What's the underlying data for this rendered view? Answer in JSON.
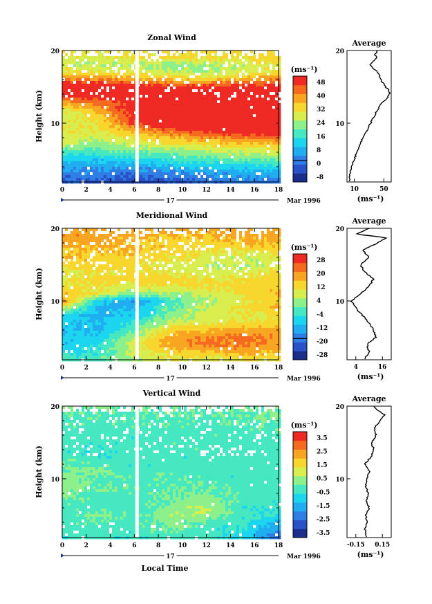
{
  "colors": {
    "wind_scale": [
      "#1a2f8c",
      "#2a52c8",
      "#2f7ee6",
      "#21aef0",
      "#1cd6ef",
      "#45e8c0",
      "#8df08a",
      "#d7ee4e",
      "#f7d72e",
      "#f8a621",
      "#f56a1e",
      "#ef2a24"
    ]
  },
  "chart_data": [
    {
      "type": "heatmap",
      "title": "Zonal Wind",
      "ylabel": "Height (km)",
      "y_ticks": [
        "20",
        "10"
      ],
      "x_ticks": [
        "0",
        "2",
        "4",
        "6",
        "8",
        "10",
        "12",
        "14",
        "16",
        "18"
      ],
      "xlim": [
        0,
        18
      ],
      "ylim": [
        2,
        20
      ],
      "date_row": {
        "day": "17",
        "month": "Mar 1996"
      },
      "gap_hour": 6.2,
      "colorbar": {
        "unit": "(ms⁻¹)",
        "labels": [
          "48",
          "40",
          "32",
          "24",
          "16",
          "8",
          "0",
          "-8"
        ],
        "zero_line": true
      },
      "average": {
        "title": "Average",
        "x_ticks": [
          "10",
          "50"
        ],
        "xlim": [
          0,
          60
        ],
        "unit": "(ms⁻¹)",
        "y_ticks": [
          "20",
          "10"
        ],
        "profile": [
          [
            2,
            3
          ],
          [
            3,
            4
          ],
          [
            4,
            6
          ],
          [
            5,
            10
          ],
          [
            6,
            13
          ],
          [
            7,
            17
          ],
          [
            8,
            22
          ],
          [
            9,
            27
          ],
          [
            10,
            32
          ],
          [
            11,
            37
          ],
          [
            12,
            42
          ],
          [
            12.8,
            48
          ],
          [
            13.5,
            55
          ],
          [
            14,
            58
          ],
          [
            14.5,
            57
          ],
          [
            15,
            52
          ],
          [
            16,
            46
          ],
          [
            17,
            42
          ],
          [
            17.5,
            36
          ],
          [
            18,
            31
          ],
          [
            18.5,
            35
          ],
          [
            19,
            40
          ],
          [
            19.5,
            38
          ],
          [
            20,
            42
          ]
        ]
      },
      "field": {
        "levels": [
          -8,
          0,
          8,
          16,
          24,
          32,
          40,
          48
        ],
        "times": [
          0,
          3,
          6,
          9,
          12,
          15,
          18
        ],
        "rows": [
          {
            "h": 2,
            "v": [
              0,
              0,
              -2,
              0,
              2,
              4,
              4
            ]
          },
          {
            "h": 3,
            "v": [
              4,
              4,
              2,
              4,
              6,
              8,
              8
            ]
          },
          {
            "h": 4,
            "v": [
              8,
              8,
              8,
              10,
              12,
              12,
              14
            ]
          },
          {
            "h": 5,
            "v": [
              12,
              12,
              14,
              16,
              18,
              20,
              20
            ]
          },
          {
            "h": 6,
            "v": [
              18,
              18,
              20,
              22,
              24,
              26,
              26
            ]
          },
          {
            "h": 7,
            "v": [
              24,
              22,
              26,
              28,
              30,
              32,
              32
            ]
          },
          {
            "h": 8,
            "v": [
              28,
              26,
              30,
              34,
              38,
              40,
              42
            ]
          },
          {
            "h": 9,
            "v": [
              30,
              28,
              36,
              42,
              46,
              48,
              50
            ]
          },
          {
            "h": 10,
            "v": [
              28,
              30,
              44,
              50,
              50,
              52,
              54
            ]
          },
          {
            "h": 11,
            "v": [
              26,
              32,
              46,
              52,
              54,
              54,
              54
            ]
          },
          {
            "h": 12,
            "v": [
              28,
              36,
              48,
              50,
              50,
              52,
              52
            ]
          },
          {
            "h": 13,
            "v": [
              38,
              42,
              46,
              48,
              50,
              50,
              50
            ]
          },
          {
            "h": 14,
            "v": [
              48,
              50,
              50,
              50,
              50,
              52,
              52
            ]
          },
          {
            "h": 15,
            "v": [
              50,
              50,
              48,
              46,
              46,
              46,
              48
            ]
          },
          {
            "h": 16,
            "v": [
              40,
              40,
              36,
              34,
              32,
              36,
              40
            ]
          },
          {
            "h": 17,
            "v": [
              30,
              30,
              28,
              26,
              24,
              28,
              30
            ]
          },
          {
            "h": 18,
            "v": [
              26,
              24,
              24,
              22,
              24,
              26,
              28
            ]
          },
          {
            "h": 19,
            "v": [
              28,
              28,
              30,
              32,
              30,
              30,
              32
            ]
          },
          {
            "h": 20,
            "v": [
              30,
              30,
              30,
              30,
              30,
              30,
              30
            ]
          }
        ]
      }
    },
    {
      "type": "heatmap",
      "title": "Meridional Wind",
      "ylabel": "Height (km)",
      "y_ticks": [
        "20",
        "10"
      ],
      "x_ticks": [
        "0",
        "2",
        "4",
        "6",
        "8",
        "10",
        "12",
        "14",
        "16",
        "18"
      ],
      "xlim": [
        0,
        18
      ],
      "ylim": [
        2,
        20
      ],
      "date_row": {
        "day": "17",
        "month": "Mar 1996"
      },
      "gap_hour": 6.2,
      "colorbar": {
        "unit": "(ms⁻¹)",
        "labels": [
          "28",
          "20",
          "12",
          "4",
          "-4",
          "-12",
          "-20",
          "-28"
        ],
        "zero_line": true
      },
      "average": {
        "title": "Average",
        "x_ticks": [
          "4",
          "16"
        ],
        "xlim": [
          0,
          20
        ],
        "unit": "(ms⁻¹)",
        "y_ticks": [
          "20",
          "10"
        ],
        "profile": [
          [
            2,
            8
          ],
          [
            3,
            10
          ],
          [
            4,
            9
          ],
          [
            5,
            13
          ],
          [
            6,
            12
          ],
          [
            7,
            10
          ],
          [
            8,
            7
          ],
          [
            9,
            4
          ],
          [
            10,
            2
          ],
          [
            11,
            6
          ],
          [
            12,
            10
          ],
          [
            13,
            12
          ],
          [
            14,
            8
          ],
          [
            15,
            6
          ],
          [
            16,
            10
          ],
          [
            17,
            7
          ],
          [
            18,
            14
          ],
          [
            18.7,
            18
          ],
          [
            19.2,
            4
          ],
          [
            20,
            10
          ]
        ]
      },
      "field": {
        "levels": [
          -28,
          -20,
          -12,
          -4,
          4,
          12,
          20,
          28
        ],
        "times": [
          0,
          3,
          6,
          9,
          12,
          15,
          18
        ],
        "rows": [
          {
            "h": 2,
            "v": [
              -4,
              -2,
              4,
              8,
              8,
              10,
              10
            ]
          },
          {
            "h": 3,
            "v": [
              -6,
              -4,
              6,
              12,
              14,
              16,
              14
            ]
          },
          {
            "h": 4,
            "v": [
              -8,
              -6,
              8,
              16,
              20,
              20,
              16
            ]
          },
          {
            "h": 5,
            "v": [
              -8,
              -8,
              4,
              16,
              18,
              20,
              18
            ]
          },
          {
            "h": 6,
            "v": [
              -10,
              -10,
              0,
              12,
              14,
              16,
              16
            ]
          },
          {
            "h": 7,
            "v": [
              -8,
              -10,
              -4,
              6,
              8,
              10,
              12
            ]
          },
          {
            "h": 8,
            "v": [
              -6,
              -12,
              -8,
              2,
              6,
              8,
              10
            ]
          },
          {
            "h": 9,
            "v": [
              6,
              -10,
              -10,
              0,
              6,
              10,
              14
            ]
          },
          {
            "h": 10,
            "v": [
              18,
              -8,
              -14,
              -2,
              4,
              8,
              12
            ]
          },
          {
            "h": 11,
            "v": [
              14,
              8,
              2,
              4,
              6,
              10,
              14
            ]
          },
          {
            "h": 12,
            "v": [
              10,
              10,
              8,
              10,
              10,
              12,
              12
            ]
          },
          {
            "h": 13,
            "v": [
              8,
              12,
              12,
              12,
              10,
              10,
              12
            ]
          },
          {
            "h": 14,
            "v": [
              8,
              10,
              10,
              8,
              6,
              8,
              10
            ]
          },
          {
            "h": 15,
            "v": [
              12,
              12,
              10,
              8,
              6,
              4,
              6
            ]
          },
          {
            "h": 16,
            "v": [
              14,
              12,
              12,
              10,
              8,
              6,
              8
            ]
          },
          {
            "h": 17,
            "v": [
              12,
              14,
              14,
              12,
              10,
              10,
              12
            ]
          },
          {
            "h": 18,
            "v": [
              16,
              16,
              14,
              12,
              12,
              14,
              14
            ]
          },
          {
            "h": 19,
            "v": [
              18,
              16,
              16,
              14,
              14,
              16,
              16
            ]
          },
          {
            "h": 20,
            "v": [
              16,
              16,
              16,
              16,
              16,
              16,
              16
            ]
          }
        ]
      }
    },
    {
      "type": "heatmap",
      "title": "Vertical Wind",
      "ylabel": "Height (km)",
      "y_ticks": [
        "20",
        "10"
      ],
      "x_ticks": [
        "0",
        "2",
        "4",
        "6",
        "8",
        "10",
        "12",
        "14",
        "16",
        "18"
      ],
      "xlabel": "Local Time",
      "xlim": [
        0,
        18
      ],
      "ylim": [
        2,
        20
      ],
      "date_row": {
        "day": "17",
        "month": "Mar 1996"
      },
      "gap_hour": 6.2,
      "colorbar": {
        "unit": "(ms⁻¹)",
        "labels": [
          "3.5",
          "2.5",
          "1.5",
          "0.5",
          "-0.5",
          "-1.5",
          "-2.5",
          "-3.5"
        ],
        "zero_line": false
      },
      "average": {
        "title": "Average",
        "x_ticks": [
          "-0.15",
          "0.15"
        ],
        "xlim": [
          -0.25,
          0.25
        ],
        "unit": "(ms⁻¹)",
        "y_ticks": [
          "20",
          "10"
        ],
        "profile": [
          [
            2,
            -0.03
          ],
          [
            3,
            -0.05
          ],
          [
            4,
            -0.02
          ],
          [
            5,
            -0.04
          ],
          [
            6,
            0.0
          ],
          [
            7,
            -0.03
          ],
          [
            8,
            -0.01
          ],
          [
            9,
            -0.04
          ],
          [
            10,
            -0.02
          ],
          [
            11,
            0.0
          ],
          [
            12,
            -0.05
          ],
          [
            13,
            0.02
          ],
          [
            14,
            0.05
          ],
          [
            15,
            0.03
          ],
          [
            16,
            0.08
          ],
          [
            17,
            0.06
          ],
          [
            18,
            0.12
          ],
          [
            18.8,
            0.18
          ],
          [
            19.4,
            0.1
          ],
          [
            20,
            0.05
          ]
        ]
      },
      "field": {
        "levels": [
          -3.5,
          -2.5,
          -1.5,
          -0.5,
          0.5,
          1.5,
          2.5,
          3.5
        ],
        "times": [
          0,
          3,
          6,
          9,
          12,
          15,
          18
        ],
        "rows": [
          {
            "h": 2,
            "v": [
              -0.4,
              -0.3,
              -0.5,
              -0.3,
              -0.4,
              -0.8,
              -2.2
            ]
          },
          {
            "h": 3,
            "v": [
              -0.3,
              -0.2,
              -0.4,
              0.2,
              -0.3,
              -0.6,
              -1.8
            ]
          },
          {
            "h": 4,
            "v": [
              -0.2,
              -0.1,
              -0.3,
              0.3,
              -0.2,
              -0.5,
              -1.2
            ]
          },
          {
            "h": 5,
            "v": [
              -0.3,
              0.0,
              -0.2,
              0.4,
              0.5,
              -0.3,
              -0.6
            ]
          },
          {
            "h": 6,
            "v": [
              -0.2,
              -0.2,
              -0.4,
              0.2,
              0.6,
              -0.4,
              -0.5
            ]
          },
          {
            "h": 7,
            "v": [
              -0.1,
              -0.3,
              -0.3,
              0.1,
              0.3,
              -0.3,
              -0.4
            ]
          },
          {
            "h": 8,
            "v": [
              0.2,
              -0.2,
              -0.2,
              0.0,
              0.2,
              -0.2,
              -0.3
            ]
          },
          {
            "h": 9,
            "v": [
              0.3,
              -0.1,
              -0.1,
              -0.2,
              0.0,
              -0.3,
              -0.4
            ]
          },
          {
            "h": 10,
            "v": [
              0.4,
              0.0,
              -0.2,
              -0.1,
              -0.2,
              -0.4,
              -0.3
            ]
          },
          {
            "h": 11,
            "v": [
              0.2,
              0.1,
              -0.3,
              -0.2,
              -0.3,
              -0.4,
              -0.2
            ]
          },
          {
            "h": 12,
            "v": [
              0.0,
              -0.2,
              -0.4,
              -0.3,
              -0.4,
              -0.3,
              -0.3
            ]
          },
          {
            "h": 13,
            "v": [
              -0.3,
              -0.4,
              -0.3,
              -0.4,
              -0.3,
              -0.2,
              -0.3
            ]
          },
          {
            "h": 14,
            "v": [
              -0.4,
              -0.5,
              -0.4,
              -0.3,
              -0.2,
              -0.3,
              -0.2
            ]
          },
          {
            "h": 15,
            "v": [
              -0.3,
              -0.4,
              -0.3,
              -0.2,
              -0.3,
              -0.2,
              -0.3
            ]
          },
          {
            "h": 16,
            "v": [
              -0.3,
              -0.3,
              -0.4,
              -0.3,
              -0.2,
              -0.3,
              -0.2
            ]
          },
          {
            "h": 17,
            "v": [
              -0.2,
              -0.3,
              -0.2,
              -0.2,
              -0.3,
              -0.2,
              -0.2
            ]
          },
          {
            "h": 18,
            "v": [
              -0.1,
              -0.2,
              -0.2,
              -0.1,
              -0.2,
              -0.1,
              -0.1
            ]
          },
          {
            "h": 19,
            "v": [
              0.0,
              -0.1,
              -0.1,
              0.0,
              -0.1,
              0.0,
              0.0
            ]
          },
          {
            "h": 20,
            "v": [
              0.0,
              0.0,
              0.0,
              0.0,
              0.0,
              0.0,
              0.0
            ]
          }
        ]
      }
    }
  ]
}
